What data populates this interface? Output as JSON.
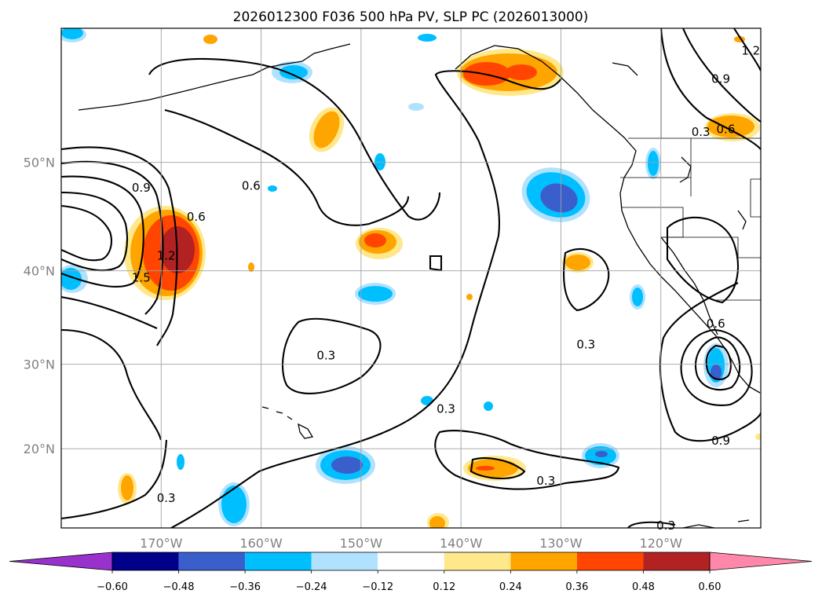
{
  "chart_data": {
    "type": "contour_map",
    "title": "2026012300 F036 500 hPa PV, SLP PC (2026013000)",
    "x_ticks": [
      "170°W",
      "160°W",
      "150°W",
      "140°W",
      "130°W",
      "120°W"
    ],
    "x_values": [
      -170,
      -160,
      -150,
      -140,
      -130,
      -120
    ],
    "y_ticks": [
      "20°N",
      "30°N",
      "40°N",
      "50°N"
    ],
    "y_values": [
      20,
      30,
      40,
      50
    ],
    "lon_range": [
      -180,
      -110
    ],
    "lat_range": [
      10,
      60
    ],
    "colorbar": {
      "ticks": [
        "−0.60",
        "−0.48",
        "−0.36",
        "−0.24",
        "−0.12",
        "0.12",
        "0.24",
        "0.36",
        "0.48",
        "0.60"
      ],
      "levels": [
        -0.6,
        -0.48,
        -0.36,
        -0.24,
        -0.12,
        0.12,
        0.24,
        0.36,
        0.48,
        0.6
      ],
      "colors": [
        "#9932cc",
        "#00008b",
        "#3a5fcd",
        "#00bfff",
        "#b0e2ff",
        "#ffffff",
        "#ffe88c",
        "#ffa500",
        "#ff4500",
        "#b22222",
        "#ff88aa"
      ]
    },
    "contour_labels": [
      {
        "text": "0.9",
        "lon": -172.0,
        "lat": 47.8
      },
      {
        "text": "0.6",
        "lon": -166.5,
        "lat": 45.2
      },
      {
        "text": "1.2",
        "lon": -169.5,
        "lat": 41.5
      },
      {
        "text": "1.5",
        "lon": -172.0,
        "lat": 39.3
      },
      {
        "text": "0.6",
        "lon": -161.0,
        "lat": 48.0
      },
      {
        "text": "0.3",
        "lon": -153.5,
        "lat": 31.0
      },
      {
        "text": "0.3",
        "lon": -141.5,
        "lat": 24.8
      },
      {
        "text": "0.3",
        "lon": -127.5,
        "lat": 32.2
      },
      {
        "text": "0.3",
        "lon": -131.5,
        "lat": 16.0
      },
      {
        "text": "0.3",
        "lon": -169.5,
        "lat": 13.8
      },
      {
        "text": "0.3",
        "lon": -119.5,
        "lat": 10.3
      },
      {
        "text": "0.9",
        "lon": -114.0,
        "lat": 56.5
      },
      {
        "text": "0.6",
        "lon": -113.5,
        "lat": 52.7
      },
      {
        "text": "0.3",
        "lon": -116.0,
        "lat": 52.5
      },
      {
        "text": "1.2",
        "lon": -111.0,
        "lat": 58.5
      },
      {
        "text": "0.6",
        "lon": -114.5,
        "lat": 34.5
      },
      {
        "text": "0.9",
        "lon": -114.0,
        "lat": 21.0
      }
    ]
  }
}
